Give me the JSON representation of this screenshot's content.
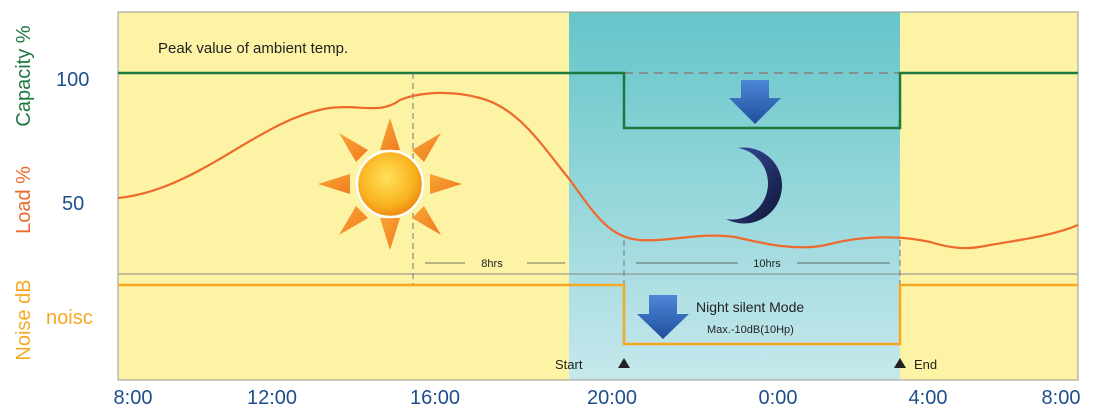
{
  "y_axis": {
    "capacity_label": "Capacity %",
    "load_label": "Load %",
    "noise_label": "Noise dB",
    "tick_100": "100",
    "tick_50": "50",
    "noise_tick": "noisc"
  },
  "x_axis": {
    "ticks": [
      "8:00",
      "12:00",
      "16:00",
      "20:00",
      "0:00",
      "4:00",
      "8:00"
    ]
  },
  "annotations": {
    "peak": "Peak value of ambient temp.",
    "dur_day": "8hrs",
    "dur_night": "10hrs",
    "mode_title": "Night silent Mode",
    "mode_detail": "Max.-10dB(10Hp)",
    "start": "Start",
    "end": "End"
  },
  "icons": [
    "sun-icon",
    "moon-icon",
    "down-arrow-icon"
  ],
  "colors": {
    "day_background": "#fdf3a5",
    "night_gradient_top": "#64c5c9",
    "night_gradient_bottom": "#c6e8ec",
    "capacity_line": "#1b7a3e",
    "load_line": "#ee6a2c",
    "noise_line": "#f7a823",
    "axis_text": "#1f4e8c",
    "arrow": "#2c62b5",
    "dashed_line": "#777777"
  }
}
